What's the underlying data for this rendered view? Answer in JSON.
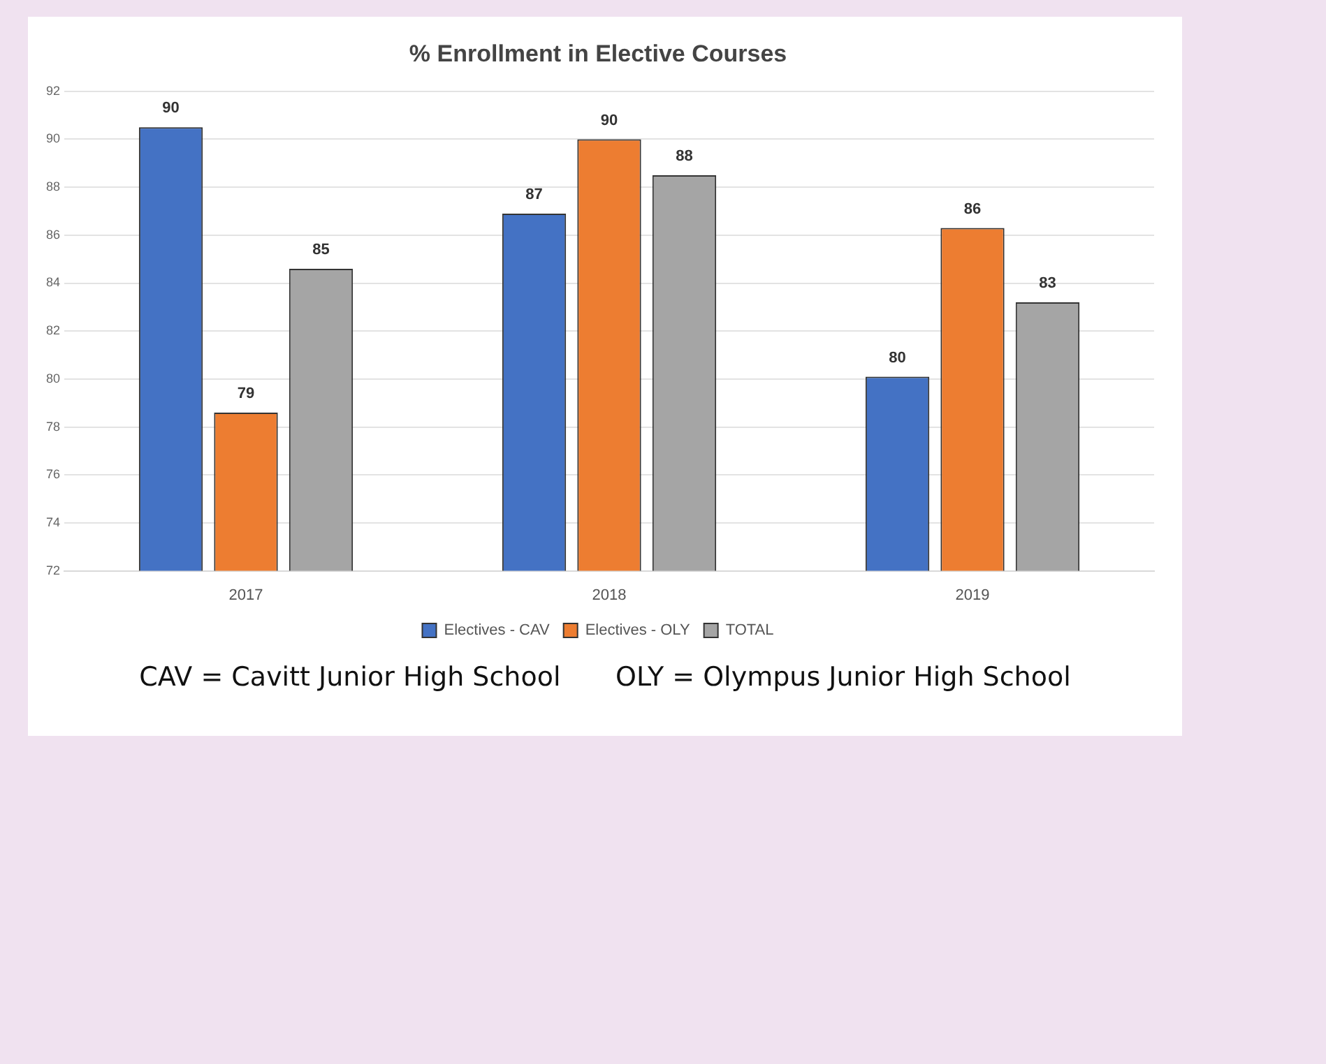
{
  "chart_data": {
    "type": "bar",
    "title": "% Enrollment in Elective Courses",
    "categories": [
      "2017",
      "2018",
      "2019"
    ],
    "series": [
      {
        "name": "Electives - CAV",
        "color": "#4472c4",
        "values": [
          90.5,
          86.9,
          80.1
        ],
        "value_labels": [
          "90",
          "87",
          "80"
        ]
      },
      {
        "name": "Electives - OLY",
        "color": "#ed7d31",
        "values": [
          78.6,
          90.0,
          86.3
        ],
        "value_labels": [
          "79",
          "90",
          "86"
        ]
      },
      {
        "name": "TOTAL",
        "color": "#a5a5a5",
        "values": [
          84.6,
          88.5,
          83.2
        ],
        "value_labels": [
          "85",
          "88",
          "83"
        ]
      }
    ],
    "ylim": [
      72,
      92
    ],
    "yticks": [
      72,
      74,
      76,
      78,
      80,
      82,
      84,
      86,
      88,
      90,
      92
    ],
    "grid": "y",
    "legend": "bottom",
    "annotations": [
      "CAV = Cavitt Junior High School",
      "OLY = Olympus Junior High School"
    ]
  }
}
